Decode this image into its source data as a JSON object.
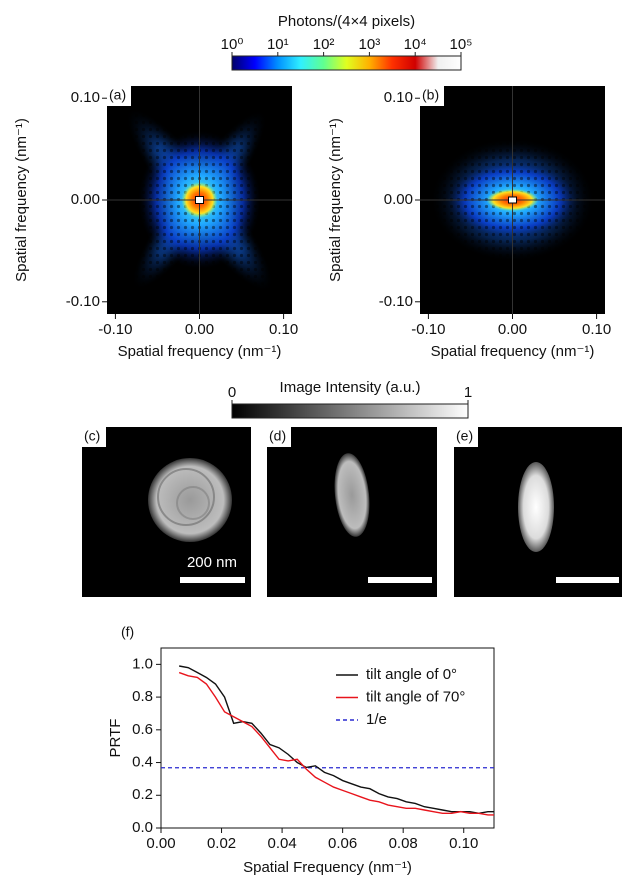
{
  "chart_data": [
    {
      "type": "colorbar",
      "title": "Photons/(4×4 pixels)",
      "scale": "log",
      "lim": [
        1,
        100000
      ],
      "ticks": [
        {
          "value": 1,
          "label": "10⁰"
        },
        {
          "value": 10,
          "label": "10¹"
        },
        {
          "value": 100,
          "label": "10²"
        },
        {
          "value": 1000,
          "label": "10³"
        },
        {
          "value": 10000,
          "label": "10⁴"
        },
        {
          "value": 100000,
          "label": "10⁵"
        }
      ],
      "colors": [
        "#00006a",
        "#0000ff",
        "#0090ff",
        "#30f0ff",
        "#60ff90",
        "#e0ff20",
        "#ffb000",
        "#ff3000",
        "#d00000",
        "#f0f0f0",
        "#ffffff"
      ]
    },
    {
      "type": "image",
      "label": "(a)",
      "xlabel": "Spatial frequency (nm⁻¹)",
      "ylabel": "Spatial frequency (nm⁻¹)",
      "xlim": [
        -0.11,
        0.11
      ],
      "ylim": [
        -0.112,
        0.112
      ],
      "xticks": [
        {
          "value": -0.1,
          "label": "-0.10"
        },
        {
          "value": 0,
          "label": "0.00"
        },
        {
          "value": 0.1,
          "label": "0.10"
        }
      ],
      "yticks": [
        {
          "value": -0.1,
          "label": "-0.10"
        },
        {
          "value": 0,
          "label": "0.00"
        },
        {
          "value": 0.1,
          "label": "0.10"
        }
      ]
    },
    {
      "type": "image",
      "label": "(b)",
      "xlabel": "Spatial frequency (nm⁻¹)",
      "ylabel": "Spatial frequency (nm⁻¹)",
      "xlim": [
        -0.11,
        0.11
      ],
      "ylim": [
        -0.112,
        0.112
      ],
      "xticks": [
        {
          "value": -0.1,
          "label": "-0.10"
        },
        {
          "value": 0,
          "label": "0.00"
        },
        {
          "value": 0.1,
          "label": "0.10"
        }
      ],
      "yticks": [
        {
          "value": -0.1,
          "label": "-0.10"
        },
        {
          "value": 0,
          "label": "0.00"
        },
        {
          "value": 0.1,
          "label": "0.10"
        }
      ]
    },
    {
      "type": "colorbar",
      "title": "Image Intensity (a.u.)",
      "scale": "linear",
      "lim": [
        0,
        1
      ],
      "ticks": [
        0,
        1
      ],
      "colors": [
        "#000000",
        "#ffffff"
      ]
    },
    {
      "type": "image",
      "label": "(c)",
      "scalebar": "200 nm"
    },
    {
      "type": "image",
      "label": "(d)"
    },
    {
      "type": "image",
      "label": "(e)"
    },
    {
      "type": "line",
      "label": "(f)",
      "xlabel": "Spatial Frequency (nm⁻¹)",
      "ylabel": "PRTF",
      "x": [
        0.006,
        0.009,
        0.012,
        0.015,
        0.018,
        0.021,
        0.024,
        0.027,
        0.03,
        0.033,
        0.036,
        0.039,
        0.042,
        0.045,
        0.048,
        0.051,
        0.054,
        0.057,
        0.06,
        0.063,
        0.066,
        0.069,
        0.072,
        0.075,
        0.078,
        0.081,
        0.084,
        0.087,
        0.09,
        0.093,
        0.096,
        0.099,
        0.102,
        0.105,
        0.108,
        0.11
      ],
      "series": [
        {
          "name": "tilt angle of 0°",
          "color": "#111111",
          "values": [
            0.99,
            0.98,
            0.95,
            0.92,
            0.88,
            0.8,
            0.64,
            0.65,
            0.64,
            0.58,
            0.51,
            0.49,
            0.45,
            0.4,
            0.37,
            0.38,
            0.34,
            0.32,
            0.29,
            0.27,
            0.25,
            0.24,
            0.21,
            0.19,
            0.18,
            0.16,
            0.15,
            0.13,
            0.12,
            0.11,
            0.1,
            0.1,
            0.1,
            0.09,
            0.1,
            0.1
          ]
        },
        {
          "name": "tilt angle of 70°",
          "color": "#e8141c",
          "values": [
            0.95,
            0.93,
            0.92,
            0.88,
            0.8,
            0.71,
            0.68,
            0.65,
            0.62,
            0.56,
            0.49,
            0.42,
            0.41,
            0.42,
            0.36,
            0.31,
            0.28,
            0.25,
            0.23,
            0.21,
            0.19,
            0.17,
            0.16,
            0.14,
            0.13,
            0.12,
            0.12,
            0.11,
            0.1,
            0.09,
            0.09,
            0.1,
            0.09,
            0.09,
            0.08,
            0.08
          ]
        }
      ],
      "hlines": [
        {
          "name": "1/e",
          "value": 0.368,
          "color": "#2a2ad0",
          "dashed": true
        }
      ],
      "legend": "upper right",
      "xlim": [
        0,
        0.11
      ],
      "ylim": [
        0,
        1.1
      ],
      "xticks": [
        {
          "value": 0,
          "label": "0.00"
        },
        {
          "value": 0.02,
          "label": "0.02"
        },
        {
          "value": 0.04,
          "label": "0.04"
        },
        {
          "value": 0.06,
          "label": "0.06"
        },
        {
          "value": 0.08,
          "label": "0.08"
        },
        {
          "value": 0.1,
          "label": "0.10"
        }
      ],
      "yticks": [
        {
          "value": 0,
          "label": "0.0"
        },
        {
          "value": 0.2,
          "label": "0.2"
        },
        {
          "value": 0.4,
          "label": "0.4"
        },
        {
          "value": 0.6,
          "label": "0.6"
        },
        {
          "value": 0.8,
          "label": "0.8"
        },
        {
          "value": 1,
          "label": "1.0"
        }
      ]
    }
  ]
}
